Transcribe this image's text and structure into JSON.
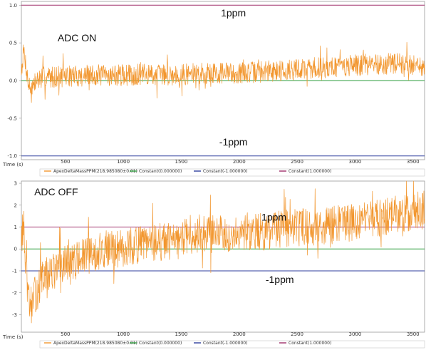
{
  "chart_data": [
    {
      "type": "line",
      "title": "",
      "xlabel": "Time (s)",
      "ylabel": "",
      "xlim": [
        120,
        3600
      ],
      "ylim": [
        -1.05,
        1.05
      ],
      "x_ticks": [
        500,
        1000,
        1500,
        2000,
        2500,
        3000,
        3500
      ],
      "y_ticks": [
        1.0,
        0.5,
        0.0,
        -0.5,
        -1.0
      ],
      "y_tick_labels": [
        "1.0",
        "0.5",
        "0.0",
        "-0.5",
        "-1.0"
      ],
      "annotations": [
        {
          "text": "ADC ON",
          "x": 600,
          "y": 0.52
        },
        {
          "text": "1ppm",
          "x": 1950,
          "y": 0.85
        },
        {
          "text": "-1ppm",
          "x": 1950,
          "y": -0.86
        }
      ],
      "legend": {
        "position": "bottom",
        "entries": [
          {
            "label": "ApexDeltaMassPPM(218.985080±0.01)",
            "color": "#f2962e"
          },
          {
            "label": "Constant(0.000000)",
            "color": "#2e9e3e"
          },
          {
            "label": "Constant(-1.000000)",
            "color": "#2f3f9e"
          },
          {
            "label": "Constant(1.000000)",
            "color": "#a0306a"
          }
        ]
      },
      "constants": [
        {
          "y": 0.0,
          "color": "#2e9e3e"
        },
        {
          "y": -1.0,
          "color": "#2f3f9e"
        },
        {
          "y": 1.0,
          "color": "#a0306a"
        }
      ],
      "series": [
        {
          "color": "#f2962e",
          "x": [
            120,
            140,
            160,
            180,
            200,
            230,
            270,
            320,
            400,
            500,
            600,
            800,
            1000,
            1200,
            1500,
            1800,
            2000,
            2200,
            2500,
            2800,
            3000,
            3200,
            3400,
            3600
          ],
          "y": [
            0.15,
            0.4,
            0.2,
            -0.05,
            -0.1,
            -0.05,
            0.02,
            0.05,
            0.05,
            0.06,
            0.06,
            0.07,
            0.07,
            0.08,
            0.08,
            0.1,
            0.1,
            0.12,
            0.15,
            0.18,
            0.2,
            0.22,
            0.22,
            0.2
          ],
          "noise": 0.09
        }
      ]
    },
    {
      "type": "line",
      "title": "",
      "xlabel": "Time (s)",
      "ylabel": "",
      "xlim": [
        120,
        3600
      ],
      "ylim": [
        -3.8,
        3.1
      ],
      "x_ticks": [
        500,
        1000,
        1500,
        2000,
        2500,
        3000,
        3500
      ],
      "y_ticks": [
        3,
        2,
        1,
        0,
        -1,
        -2,
        -3
      ],
      "y_tick_labels": [
        "3",
        "2",
        "1",
        "0",
        "-1",
        "-2",
        "-3"
      ],
      "annotations": [
        {
          "text": "ADC OFF",
          "x": 420,
          "y": 2.45
        },
        {
          "text": "1ppm",
          "x": 2300,
          "y": 1.3
        },
        {
          "text": "-1ppm",
          "x": 2350,
          "y": -1.55
        }
      ],
      "legend": {
        "position": "bottom",
        "entries": [
          {
            "label": "ApexDeltaMassPPM(218.985080±0.01)",
            "color": "#f2962e"
          },
          {
            "label": "Constant(0.000000)",
            "color": "#2e9e3e"
          },
          {
            "label": "Constant(-1.000000)",
            "color": "#2f3f9e"
          },
          {
            "label": "Constant(1.000000)",
            "color": "#a0306a"
          }
        ]
      },
      "constants": [
        {
          "y": 0.0,
          "color": "#2e9e3e"
        },
        {
          "y": -1.0,
          "color": "#2f3f9e"
        },
        {
          "y": 1.0,
          "color": "#a0306a"
        }
      ],
      "series": [
        {
          "color": "#f2962e",
          "x": [
            120,
            140,
            160,
            180,
            200,
            250,
            300,
            400,
            500,
            700,
            900,
            1100,
            1300,
            1500,
            1560,
            1800,
            2000,
            2200,
            2500,
            2800,
            3000,
            3200,
            3400,
            3600
          ],
          "y": [
            0.6,
            1.0,
            -1.2,
            -2.3,
            -2.6,
            -2.0,
            -1.4,
            -1.0,
            -0.7,
            -0.3,
            0.0,
            0.15,
            0.3,
            0.3,
            0.7,
            0.7,
            0.8,
            0.8,
            1.0,
            1.1,
            1.2,
            1.4,
            1.6,
            1.8
          ],
          "noise": 0.55
        }
      ]
    }
  ]
}
